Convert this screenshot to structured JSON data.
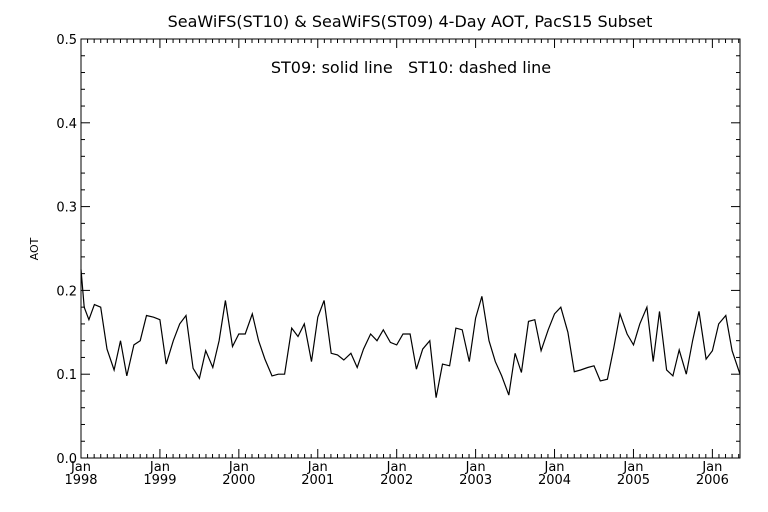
{
  "chart_data": {
    "type": "line",
    "title": "SeaWiFS(ST10) & SeaWiFS(ST09) 4-Day AOT, PacS15 Subset",
    "annotation": "ST09: solid line   ST10: dashed line",
    "ylabel": "AOT",
    "xlabel": "",
    "ylim": [
      0.0,
      0.5
    ],
    "xlim": [
      1998.0,
      2006.35
    ],
    "yticks": [
      "0.0",
      "0.1",
      "0.2",
      "0.3",
      "0.4",
      "0.5"
    ],
    "xticks": [
      {
        "month": "Jan",
        "year": "1998"
      },
      {
        "month": "Jan",
        "year": "1999"
      },
      {
        "month": "Jan",
        "year": "2000"
      },
      {
        "month": "Jan",
        "year": "2001"
      },
      {
        "month": "Jan",
        "year": "2002"
      },
      {
        "month": "Jan",
        "year": "2003"
      },
      {
        "month": "Jan",
        "year": "2004"
      },
      {
        "month": "Jan",
        "year": "2005"
      },
      {
        "month": "Jan",
        "year": "2006"
      }
    ],
    "grid": false,
    "series": [
      {
        "style": "solid",
        "color": "#000000",
        "x": [
          1998.0,
          1998.04,
          1998.1,
          1998.17,
          1998.25,
          1998.33,
          1998.42,
          1998.5,
          1998.58,
          1998.67,
          1998.75,
          1998.83,
          1998.92,
          1999.0,
          1999.08,
          1999.17,
          1999.25,
          1999.33,
          1999.42,
          1999.5,
          1999.58,
          1999.67,
          1999.75,
          1999.83,
          1999.92,
          2000.0,
          2000.08,
          2000.17,
          2000.25,
          2000.33,
          2000.42,
          2000.5,
          2000.58,
          2000.67,
          2000.75,
          2000.83,
          2000.92,
          2001.0,
          2001.08,
          2001.17,
          2001.25,
          2001.33,
          2001.42,
          2001.5,
          2001.58,
          2001.67,
          2001.75,
          2001.83,
          2001.92,
          2002.0,
          2002.08,
          2002.17,
          2002.25,
          2002.33,
          2002.42,
          2002.5,
          2002.58,
          2002.67,
          2002.75,
          2002.83,
          2002.92,
          2003.0,
          2003.08,
          2003.17,
          2003.25,
          2003.33,
          2003.42,
          2003.5,
          2003.58,
          2003.67,
          2003.75,
          2003.83,
          2003.92,
          2004.0,
          2004.08,
          2004.17,
          2004.25,
          2004.33,
          2004.42,
          2004.5,
          2004.58,
          2004.67,
          2004.75,
          2004.83,
          2004.92,
          2005.0,
          2005.08,
          2005.17,
          2005.25,
          2005.33,
          2005.42,
          2005.5,
          2005.58,
          2005.67,
          2005.75,
          2005.83,
          2005.92,
          2006.0,
          2006.08,
          2006.17,
          2006.25,
          2006.35
        ],
        "y": [
          0.225,
          0.18,
          0.165,
          0.183,
          0.18,
          0.13,
          0.105,
          0.14,
          0.098,
          0.135,
          0.14,
          0.17,
          0.168,
          0.165,
          0.112,
          0.14,
          0.16,
          0.17,
          0.107,
          0.095,
          0.128,
          0.108,
          0.14,
          0.188,
          0.133,
          0.148,
          0.148,
          0.172,
          0.14,
          0.118,
          0.098,
          0.1,
          0.1,
          0.155,
          0.145,
          0.16,
          0.115,
          0.168,
          0.188,
          0.125,
          0.123,
          0.117,
          0.125,
          0.108,
          0.13,
          0.148,
          0.14,
          0.153,
          0.138,
          0.135,
          0.148,
          0.148,
          0.106,
          0.13,
          0.14,
          0.072,
          0.112,
          0.11,
          0.155,
          0.153,
          0.115,
          0.167,
          0.193,
          0.14,
          0.115,
          0.098,
          0.075,
          0.125,
          0.102,
          0.163,
          0.165,
          0.128,
          0.153,
          0.172,
          0.18,
          0.15,
          0.103,
          0.105,
          0.108,
          0.11,
          0.092,
          0.094,
          0.131,
          0.172,
          0.148,
          0.135,
          0.16,
          0.18,
          0.115,
          0.175,
          0.105,
          0.098,
          0.129,
          0.1,
          0.14,
          0.175,
          0.118,
          0.128,
          0.16,
          0.17,
          0.128,
          0.1
        ]
      }
    ]
  }
}
